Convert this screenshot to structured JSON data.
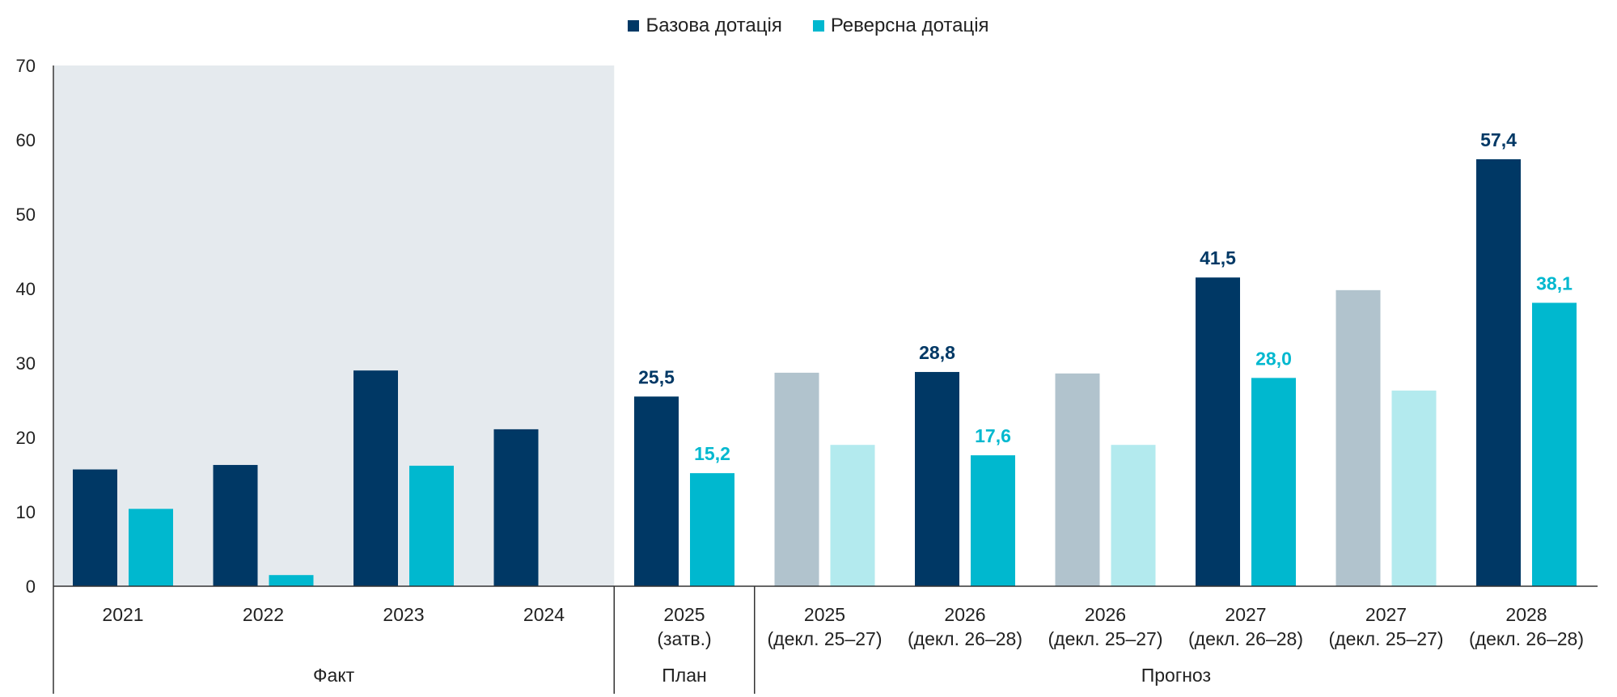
{
  "legend": {
    "base_label": "Базова дотація",
    "reverse_label": "Реверсна дотація"
  },
  "colors": {
    "base": "#003865",
    "reverse": "#00b8cf",
    "base_forecast_prev": "#b1c3cd",
    "reverse_forecast_prev": "#b3eaee",
    "fact_background": "#e5eaee",
    "base_label": "#003865",
    "reverse_label": "#00b8cf",
    "axis": "#333333"
  },
  "chart_data": {
    "type": "bar",
    "ylim": [
      0,
      70
    ],
    "yticks": [
      0,
      10,
      20,
      30,
      40,
      50,
      60,
      70
    ],
    "grid": false,
    "legend_position": "top-center",
    "categories": [
      "2021",
      "2022",
      "2023",
      "2024",
      "2025 (затв.)",
      "2025 (декл. 25–27)",
      "2026 (декл. 26–28)",
      "2026 (декл. 25–27)",
      "2027 (декл. 26–28)",
      "2027 (декл. 25–27)",
      "2028 (декл. 26–28)"
    ],
    "category_lines": [
      [
        "2021"
      ],
      [
        "2022"
      ],
      [
        "2023"
      ],
      [
        "2024"
      ],
      [
        "2025",
        "(затв.)"
      ],
      [
        "2025",
        "(декл. 25–27)"
      ],
      [
        "2026",
        "(декл. 26–28)"
      ],
      [
        "2026",
        "(декл. 25–27)"
      ],
      [
        "2027",
        "(декл. 26–28)"
      ],
      [
        "2027",
        "(декл. 25–27)"
      ],
      [
        "2028",
        "(декл. 26–28)"
      ]
    ],
    "series": [
      {
        "name": "Базова дотація",
        "values": [
          15.7,
          16.3,
          29.0,
          21.1,
          25.5,
          28.7,
          28.8,
          28.6,
          41.5,
          39.8,
          57.4
        ],
        "labels": [
          null,
          null,
          null,
          null,
          "25,5",
          null,
          "28,8",
          null,
          "41,5",
          null,
          "57,4"
        ]
      },
      {
        "name": "Реверсна дотація",
        "values": [
          10.4,
          1.5,
          16.2,
          0,
          15.2,
          19.0,
          17.6,
          19.0,
          28.0,
          26.3,
          38.1
        ],
        "labels": [
          null,
          null,
          null,
          null,
          "15,2",
          null,
          "17,6",
          null,
          "28,0",
          null,
          "38,1"
        ]
      }
    ],
    "muted_categories": [
      5,
      7,
      9
    ],
    "groups": [
      {
        "label": "Факт",
        "from": 0,
        "to": 3,
        "shaded": true
      },
      {
        "label": "План",
        "from": 4,
        "to": 4,
        "shaded": false
      },
      {
        "label": "Прогноз",
        "from": 5,
        "to": 10,
        "shaded": false
      }
    ]
  }
}
